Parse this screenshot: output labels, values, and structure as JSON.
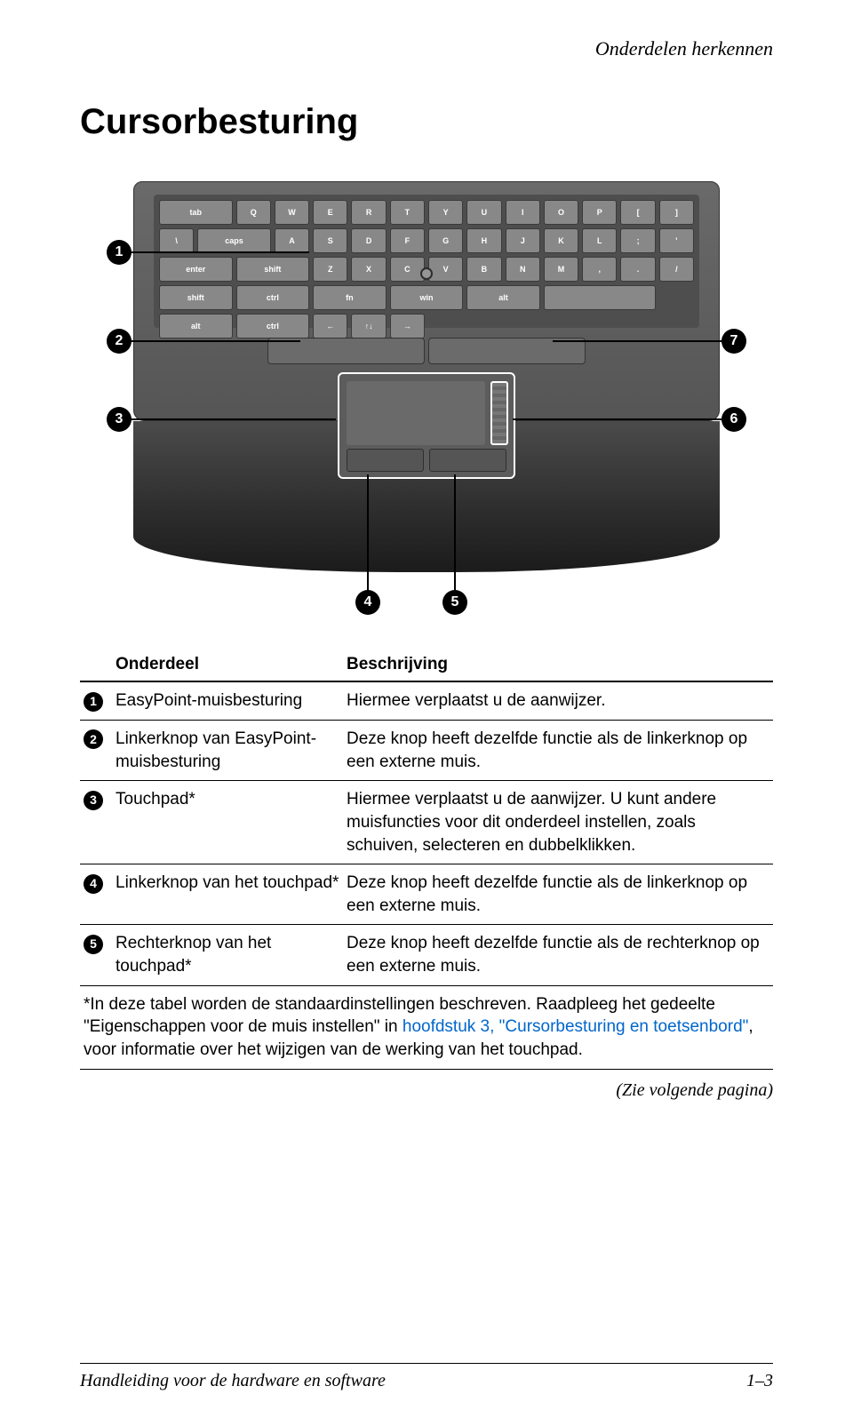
{
  "running_head": "Onderdelen herkennen",
  "section_title": "Cursorbesturing",
  "diagram": {
    "callouts": [
      {
        "n": "1",
        "style": "left:0px; top:76px;",
        "lead": {
          "style": "left:28px; top:89px; width:200px;"
        }
      },
      {
        "n": "2",
        "style": "left:0px; top:176px;",
        "lead": {
          "style": "left:28px; top:189px; width:190px;"
        }
      },
      {
        "n": "3",
        "style": "left:0px; top:264px;",
        "lead": {
          "style": "left:28px; top:277px; width:230px;"
        }
      },
      {
        "n": "4",
        "style": "left:280px; top:470px;",
        "lead_v": {
          "style": "left:293px; top:340px; height:132px;"
        }
      },
      {
        "n": "5",
        "style": "left:378px; top:470px;",
        "lead_v": {
          "style": "left:391px; top:340px; height:132px;"
        }
      },
      {
        "n": "6",
        "style": "right:0px; top:264px;",
        "lead": {
          "style": "right:28px; top:277px; width:235px;"
        }
      },
      {
        "n": "7",
        "style": "right:0px; top:176px;",
        "lead": {
          "style": "right:28px; top:189px; width:190px;"
        }
      }
    ],
    "keyboard_top_row": [
      "tab",
      "Q",
      "W",
      "E",
      "R",
      "T",
      "Y",
      "U",
      "I",
      "O",
      "P",
      "[",
      "]",
      "\\"
    ],
    "keyboard_row2": [
      "caps",
      "A",
      "S",
      "D",
      "F",
      "G",
      "H",
      "J",
      "K",
      "L",
      ";",
      "'",
      "enter"
    ],
    "keyboard_row3": [
      "shift",
      "Z",
      "X",
      "C",
      "V",
      "B",
      "N",
      "M",
      ",",
      ".",
      "/",
      "shift"
    ],
    "keyboard_row4": [
      "ctrl",
      "fn",
      "win",
      "alt",
      "",
      "alt",
      "ctrl",
      "←",
      "↑↓",
      "→"
    ]
  },
  "table": {
    "header": {
      "col1": "Onderdeel",
      "col2": "Beschrijving"
    },
    "col_widths": {
      "badge": "36px",
      "name": "260px"
    },
    "rows": [
      {
        "num": "1",
        "name": "EasyPoint-muisbesturing",
        "desc": "Hiermee verplaatst u de aanwijzer."
      },
      {
        "num": "2",
        "name": "Linkerknop van EasyPoint-muisbesturing",
        "desc": "Deze knop heeft dezelfde functie als de linkerknop op een externe muis."
      },
      {
        "num": "3",
        "name": "Touchpad*",
        "desc": "Hiermee verplaatst u de aanwijzer. U kunt andere muisfuncties voor dit onderdeel instellen, zoals schuiven, selecteren en dubbelklikken."
      },
      {
        "num": "4",
        "name": "Linkerknop van het touchpad*",
        "desc": "Deze knop heeft dezelfde functie als de linkerknop op een externe muis."
      },
      {
        "num": "5",
        "name": "Rechterknop van het touchpad*",
        "desc": "Deze knop heeft dezelfde functie als de rechterknop op een externe muis."
      }
    ],
    "footnote": {
      "pre": "*In deze tabel worden de standaardinstellingen beschreven. Raadpleeg het gedeelte \"Eigenschappen voor de muis instellen\" in ",
      "link1": "hoofdstuk  3, \"Cursorbesturing en toetsenbord\"",
      "post": ", voor informatie over het wijzigen van de werking van het touchpad."
    },
    "continuation": "(Zie volgende pagina)"
  },
  "footer": {
    "left": "Handleiding voor de hardware en software",
    "right": "1–3"
  },
  "colors": {
    "link": "#0066cc",
    "text": "#000000",
    "badge_bg": "#000000",
    "badge_fg": "#ffffff"
  }
}
